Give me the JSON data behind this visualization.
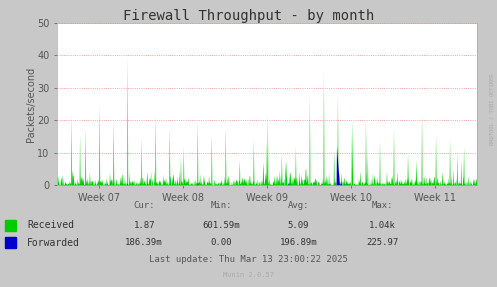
{
  "title": "Firewall Throughput - by month",
  "ylabel": "Packets/second",
  "bg_color": "#c8c8c8",
  "plot_bg_color": "#ffffff",
  "grid_color": "#ff7070",
  "ylim": [
    0,
    50
  ],
  "yticks": [
    0,
    10,
    20,
    30,
    40,
    50
  ],
  "week_labels": [
    "Week 07",
    "Week 08",
    "Week 09",
    "Week 10",
    "Week 11"
  ],
  "received_color": "#00cc00",
  "forwarded_color": "#0000cc",
  "legend_entries": [
    "Received",
    "Forwarded"
  ],
  "stats_headers": [
    "Cur:",
    "Min:",
    "Avg:",
    "Max:"
  ],
  "stats_received": [
    "1.87",
    "601.59m",
    "5.09",
    "1.04k"
  ],
  "stats_forwarded": [
    "186.39m",
    "0.00",
    "196.89m",
    "225.97"
  ],
  "last_update": "Last update: Thu Mar 13 23:00:22 2025",
  "munin_version": "Munin 2.0.57",
  "rrdtool_label": "RRDTOOL / TOBI OETIKER",
  "num_points": 900,
  "title_fontsize": 10,
  "axis_label_fontsize": 7,
  "tick_fontsize": 7,
  "legend_fontsize": 7,
  "stats_fontsize": 6.5
}
